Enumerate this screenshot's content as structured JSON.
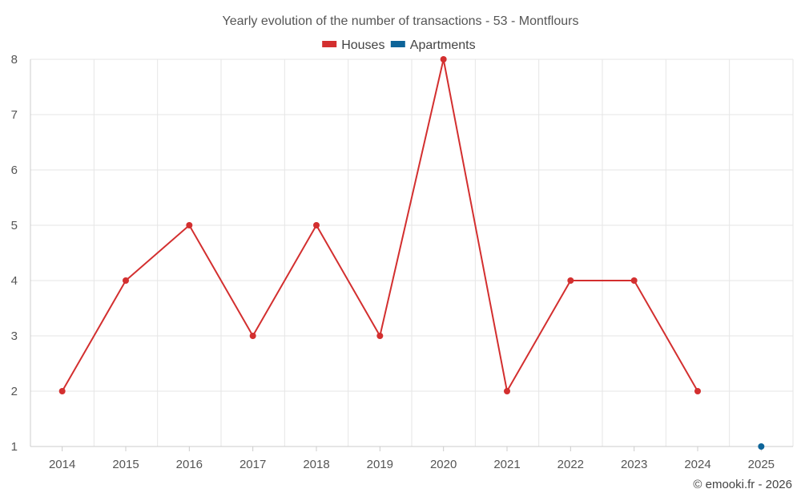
{
  "chart_data": {
    "type": "line",
    "title": "Yearly evolution of the number of transactions - 53 - Montflours",
    "x": [
      "2014",
      "2015",
      "2016",
      "2017",
      "2018",
      "2019",
      "2020",
      "2021",
      "2022",
      "2023",
      "2024",
      "2025"
    ],
    "series": [
      {
        "name": "Houses",
        "color": "#d32f2f",
        "values": [
          2,
          4,
          5,
          3,
          5,
          3,
          8,
          2,
          4,
          4,
          2,
          null
        ]
      },
      {
        "name": "Apartments",
        "color": "#0d6499",
        "values": [
          null,
          null,
          null,
          null,
          null,
          null,
          null,
          null,
          null,
          null,
          null,
          1
        ]
      }
    ],
    "ylim": [
      1,
      8
    ],
    "yticks": [
      1,
      2,
      3,
      4,
      5,
      6,
      7,
      8
    ],
    "grid": true,
    "legend_position": "top-center",
    "xlabel": "",
    "ylabel": ""
  },
  "credit": "© emooki.fr - 2026"
}
